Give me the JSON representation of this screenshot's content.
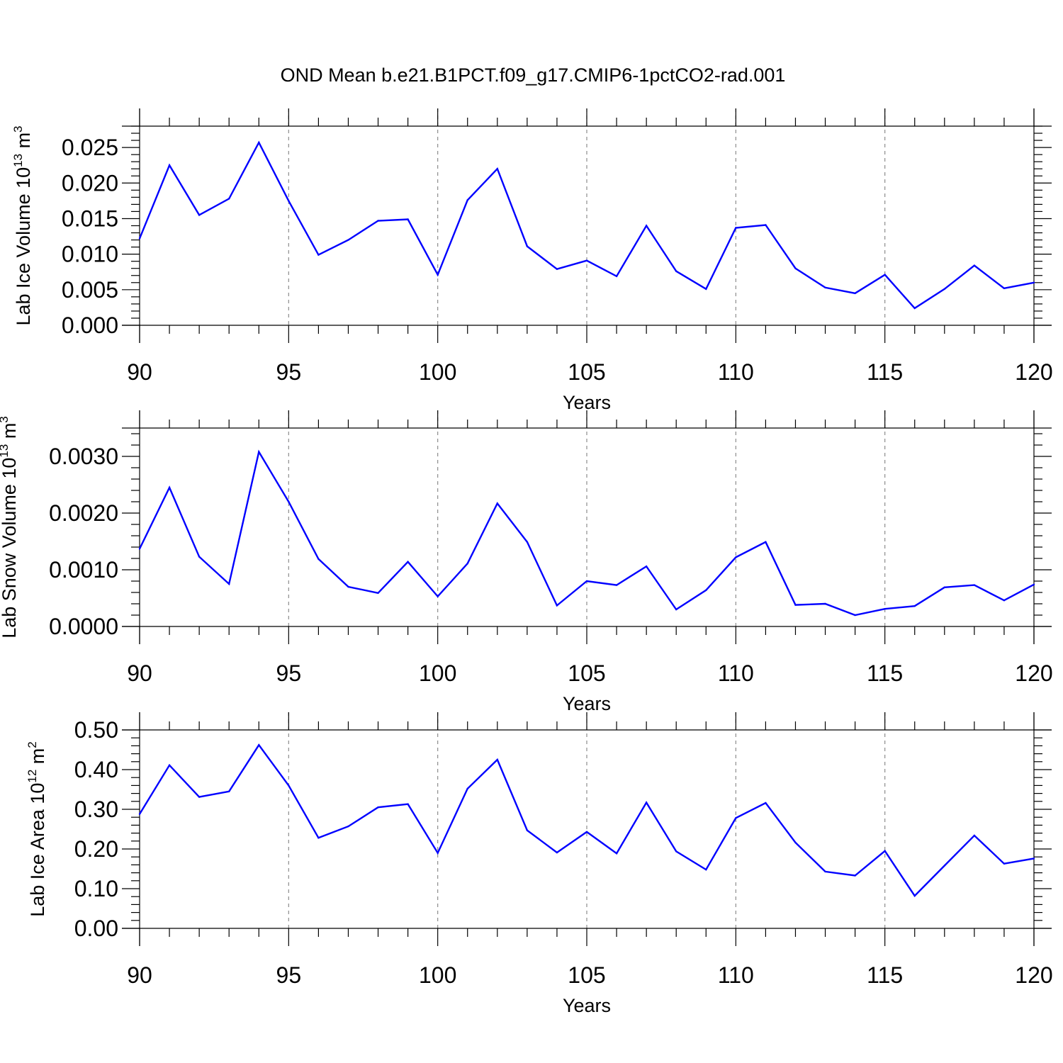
{
  "chart_data": [
    {
      "type": "line",
      "title": "OND Mean b.e21.B1PCT.f09_g17.CMIP6-1pctCO2-rad.001",
      "xlabel": "Years",
      "ylabel": {
        "text": "Lab Ice Volume 10",
        "sup": "13",
        "unit": " m",
        "unit_sup": "3"
      },
      "xlim": [
        90,
        120
      ],
      "ylim": [
        0,
        0.028
      ],
      "x_ticks": [
        "90",
        "95",
        "100",
        "105",
        "110",
        "115",
        "120"
      ],
      "y_ticks": [
        "0.000",
        "0.005",
        "0.010",
        "0.015",
        "0.020",
        "0.025"
      ],
      "vertical_gridlines": "dashed at x ticks",
      "line_color": "#0000ff",
      "x": [
        90,
        91,
        92,
        93,
        94,
        95,
        96,
        97,
        98,
        99,
        100,
        101,
        102,
        103,
        104,
        105,
        106,
        107,
        108,
        109,
        110,
        111,
        112,
        113,
        114,
        115,
        116,
        117,
        118,
        119,
        120
      ],
      "values": [
        0.0122,
        0.0225,
        0.0155,
        0.0178,
        0.0257,
        0.0175,
        0.0099,
        0.012,
        0.0147,
        0.0149,
        0.0071,
        0.0176,
        0.022,
        0.0111,
        0.0079,
        0.0091,
        0.0069,
        0.014,
        0.0076,
        0.0051,
        0.0137,
        0.0141,
        0.008,
        0.0053,
        0.0045,
        0.0071,
        0.0024,
        0.0051,
        0.0084,
        0.0052,
        0.006
      ]
    },
    {
      "type": "line",
      "xlabel": "Years",
      "ylabel": {
        "text": "Lab Snow Volume 10",
        "sup": "13",
        "unit": " m",
        "unit_sup": "3"
      },
      "xlim": [
        90,
        120
      ],
      "ylim": [
        0,
        0.0035
      ],
      "x_ticks": [
        "90",
        "95",
        "100",
        "105",
        "110",
        "115",
        "120"
      ],
      "y_ticks": [
        "0.0000",
        "0.0010",
        "0.0020",
        "0.0030"
      ],
      "vertical_gridlines": "dashed at x ticks",
      "line_color": "#0000ff",
      "x": [
        90,
        91,
        92,
        93,
        94,
        95,
        96,
        97,
        98,
        99,
        100,
        101,
        102,
        103,
        104,
        105,
        106,
        107,
        108,
        109,
        110,
        111,
        112,
        113,
        114,
        115,
        116,
        117,
        118,
        119,
        120
      ],
      "values": [
        0.00137,
        0.00245,
        0.00123,
        0.00075,
        0.00308,
        0.0022,
        0.00119,
        0.0007,
        0.00059,
        0.00114,
        0.00053,
        0.00111,
        0.00217,
        0.00149,
        0.00037,
        0.0008,
        0.00073,
        0.00106,
        0.0003,
        0.00064,
        0.00122,
        0.00149,
        0.00038,
        0.0004,
        0.0002,
        0.00031,
        0.00036,
        0.00069,
        0.00073,
        0.00046,
        0.00074
      ]
    },
    {
      "type": "line",
      "xlabel": "Years",
      "ylabel": {
        "text": "Lab Ice Area 10",
        "sup": "12",
        "unit": " m",
        "unit_sup": "2"
      },
      "xlim": [
        90,
        120
      ],
      "ylim": [
        0,
        0.5
      ],
      "x_ticks": [
        "90",
        "95",
        "100",
        "105",
        "110",
        "115",
        "120"
      ],
      "y_ticks": [
        "0.00",
        "0.10",
        "0.20",
        "0.30",
        "0.40",
        "0.50"
      ],
      "vertical_gridlines": "dashed at x ticks",
      "line_color": "#0000ff",
      "x": [
        90,
        91,
        92,
        93,
        94,
        95,
        96,
        97,
        98,
        99,
        100,
        101,
        102,
        103,
        104,
        105,
        106,
        107,
        108,
        109,
        110,
        111,
        112,
        113,
        114,
        115,
        116,
        117,
        118,
        119,
        120
      ],
      "values": [
        0.288,
        0.411,
        0.331,
        0.345,
        0.462,
        0.36,
        0.228,
        0.257,
        0.305,
        0.313,
        0.19,
        0.352,
        0.425,
        0.247,
        0.191,
        0.243,
        0.189,
        0.317,
        0.194,
        0.148,
        0.278,
        0.316,
        0.216,
        0.143,
        0.133,
        0.195,
        0.082,
        0.158,
        0.234,
        0.163,
        0.176
      ]
    }
  ]
}
